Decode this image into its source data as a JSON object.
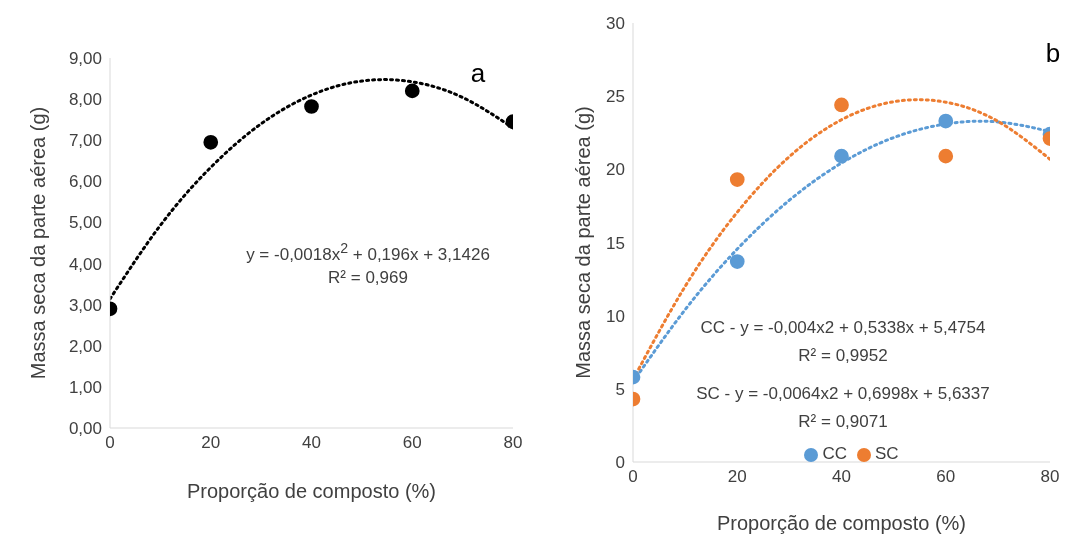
{
  "chart_data": [
    {
      "type": "scatter",
      "xlabel": "Proporção de composto (%)",
      "ylabel": "Massa seca da parte aérea (g)",
      "x": [
        0,
        20,
        40,
        60,
        80
      ],
      "xlim": [
        0,
        80
      ],
      "xticks": [
        0,
        20,
        40,
        60,
        80
      ],
      "ylim": [
        0,
        9
      ],
      "yticks": [
        {
          "value": 0,
          "label": "0,00"
        },
        {
          "value": 1,
          "label": "1,00"
        },
        {
          "value": 2,
          "label": "2,00"
        },
        {
          "value": 3,
          "label": "3,00"
        },
        {
          "value": 4,
          "label": "4,00"
        },
        {
          "value": 5,
          "label": "5,00"
        },
        {
          "value": 6,
          "label": "6,00"
        },
        {
          "value": 7,
          "label": "7,00"
        },
        {
          "value": 8,
          "label": "8,00"
        },
        {
          "value": 9,
          "label": "9,00"
        }
      ],
      "grid": false,
      "legend": false,
      "marker": "circle",
      "annotations": [
        "a",
        "y = -0,0018x$^{2}$ + 0,196x + 3,1426",
        "R² = 0,969"
      ],
      "series": [
        {
          "color": "#000000",
          "values": [
            2.9,
            6.95,
            7.82,
            8.2,
            7.45
          ]
        },
        {
          "type": "line",
          "line_style": "dotted",
          "marker": "none",
          "color": "#000000",
          "x": [
            0,
            10,
            20,
            30,
            40,
            50,
            60,
            70,
            80
          ],
          "values": [
            3.14,
            4.93,
            6.34,
            7.4,
            8.1,
            8.44,
            8.42,
            8.04,
            7.3
          ]
        }
      ]
    },
    {
      "type": "scatter",
      "xlabel": "Proporção de composto (%)",
      "ylabel": "Massa seca da parte aérea (g)",
      "x": [
        0,
        20,
        40,
        60,
        80
      ],
      "xlim": [
        0,
        80
      ],
      "xticks": [
        0,
        20,
        40,
        60,
        80
      ],
      "ylim": [
        0,
        30
      ],
      "yticks": [
        0,
        5,
        10,
        15,
        20,
        25,
        30
      ],
      "grid": false,
      "legend": "bottom",
      "marker": "circle",
      "annotations": [
        "b",
        "CC - y = -0,004x2 + 0,5338x + 5,4754",
        "R² = 0,9952",
        "SC - y = -0,0064x2 + 0,6998x + 5,6337",
        "R² = 0,9071"
      ],
      "series": [
        {
          "name": "CC",
          "color": "#5b9bd5",
          "values": [
            5.8,
            13.7,
            20.9,
            23.3,
            22.4
          ]
        },
        {
          "name": "SC",
          "color": "#ed7d31",
          "values": [
            4.3,
            19.3,
            24.4,
            20.9,
            22.1
          ]
        },
        {
          "type": "line",
          "line_style": "dotted",
          "marker": "none",
          "color": "#5b9bd5",
          "x": [
            0,
            10,
            20,
            30,
            40,
            50,
            60,
            70,
            80
          ],
          "values": [
            5.48,
            10.41,
            14.55,
            17.89,
            20.43,
            22.17,
            23.1,
            23.24,
            22.58
          ]
        },
        {
          "type": "line",
          "line_style": "dotted",
          "marker": "none",
          "color": "#ed7d31",
          "x": [
            0,
            10,
            20,
            30,
            40,
            50,
            60,
            70,
            80
          ],
          "values": [
            5.63,
            12.0,
            17.07,
            20.87,
            23.39,
            24.62,
            24.59,
            23.28,
            20.69
          ]
        }
      ]
    }
  ]
}
